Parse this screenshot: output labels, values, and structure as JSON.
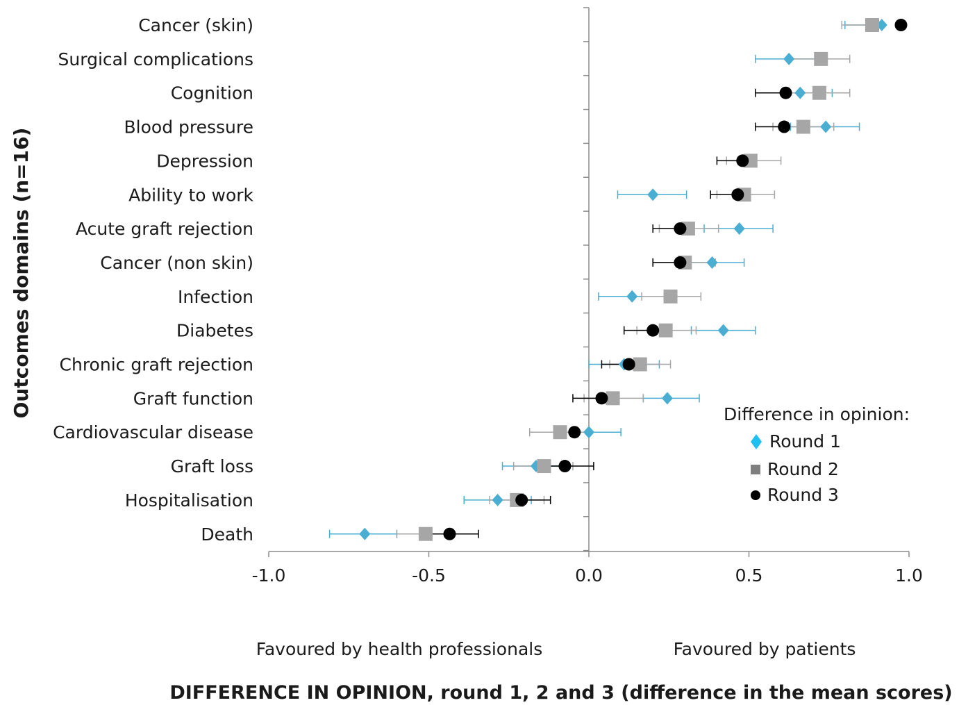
{
  "chart_data": {
    "type": "scatter",
    "title": "",
    "ylabel": "Outcomes domains (n=16)",
    "xlabel": "DIFFERENCE IN OPINION, round 1, 2 and 3 (difference in the mean scores)",
    "xlim": [
      -1.0,
      1.0
    ],
    "x_ticks": [
      "-1.0",
      "-0.5",
      "0.0",
      "0.5",
      "1.0"
    ],
    "x_tick_values": [
      -1.0,
      -0.5,
      0.0,
      0.5,
      1.0
    ],
    "left_side_label": "Favoured by health professionals",
    "right_side_label": "Favoured by patients",
    "grid": false,
    "legend": {
      "title": "Difference in opinion:",
      "placement": "right",
      "entries": [
        "Round 1",
        "Round 2",
        "Round 3"
      ]
    },
    "categories": [
      "Cancer (skin)",
      "Surgical complications",
      "Cognition",
      "Blood pressure",
      "Depression",
      "Ability to work",
      "Acute graft rejection",
      "Cancer (non skin)",
      "Infection",
      "Diabetes",
      "Chronic graft rejection",
      "Graft function",
      "Cardiovascular disease",
      "Graft loss",
      "Hospitalisation",
      "Death"
    ],
    "series": [
      {
        "name": "Round 1",
        "marker": "diamond",
        "color": "#4aaed3",
        "values": [
          0.915,
          0.625,
          0.66,
          0.74,
          null,
          0.2,
          0.47,
          0.385,
          0.135,
          0.42,
          0.11,
          0.245,
          0.0,
          -0.165,
          -0.285,
          -0.7
        ],
        "low": [
          0.8,
          0.52,
          null,
          0.63,
          null,
          0.09,
          0.36,
          0.3,
          0.03,
          0.32,
          0.0,
          0.17,
          -0.09,
          -0.27,
          -0.39,
          -0.81
        ],
        "high": [
          null,
          0.72,
          0.76,
          0.845,
          null,
          0.305,
          0.575,
          0.485,
          0.235,
          0.52,
          0.22,
          0.345,
          0.1,
          -0.06,
          -0.18,
          -0.6
        ]
      },
      {
        "name": "Round 2",
        "marker": "square",
        "color": "#a6a6a6",
        "values": [
          0.885,
          0.725,
          0.72,
          0.67,
          0.505,
          0.485,
          0.31,
          0.3,
          0.255,
          0.24,
          0.16,
          0.075,
          -0.09,
          -0.14,
          -0.225,
          -0.51
        ],
        "low": [
          0.79,
          0.63,
          0.625,
          0.575,
          0.43,
          0.4,
          0.22,
          0.2,
          0.165,
          0.15,
          0.065,
          -0.015,
          -0.185,
          -0.235,
          -0.31,
          -0.6
        ],
        "high": [
          null,
          0.815,
          0.815,
          0.765,
          0.6,
          0.58,
          0.405,
          0.395,
          0.35,
          0.335,
          0.255,
          0.17,
          0.0,
          -0.05,
          -0.14,
          null
        ]
      },
      {
        "name": "Round 3",
        "marker": "circle",
        "color": "#000000",
        "values": [
          0.975,
          null,
          0.615,
          0.61,
          0.48,
          0.465,
          0.285,
          0.285,
          null,
          0.2,
          0.125,
          0.04,
          -0.045,
          -0.075,
          -0.21,
          -0.435
        ],
        "low": [
          null,
          null,
          0.52,
          0.52,
          0.4,
          0.38,
          0.2,
          0.2,
          null,
          0.11,
          0.04,
          -0.05,
          null,
          -0.16,
          null,
          -0.52
        ],
        "high": [
          null,
          null,
          null,
          null,
          null,
          null,
          null,
          null,
          null,
          null,
          null,
          null,
          null,
          0.015,
          -0.12,
          -0.345
        ]
      }
    ]
  }
}
